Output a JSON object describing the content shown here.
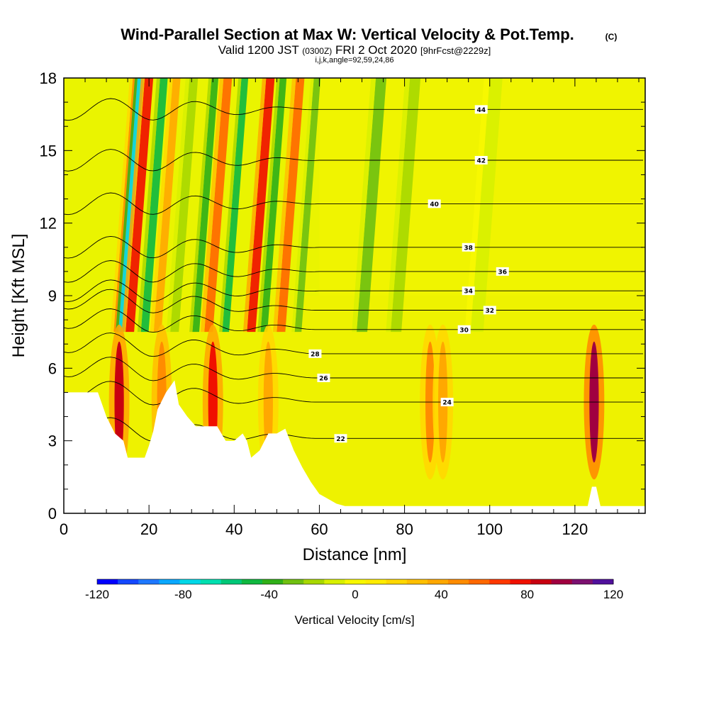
{
  "chart_data": {
    "type": "heatmap",
    "title": "Wind-Parallel Section at Max W: Vertical Velocity & Pot.Temp.",
    "title_mark": "(C)",
    "subtitle_main": "Valid 1200 JST",
    "subtitle_utc": "(0300Z)",
    "subtitle_date": "FRI 2 Oct 2020",
    "subtitle_fcst": "[9hrFcst@2229z]",
    "subtitle_ijk": "i,j,k,angle=92,59,24,86",
    "xlabel": "Distance [nm]",
    "ylabel": "Height [Kft MSL]",
    "xlim": [
      0,
      136.5
    ],
    "ylim": [
      0,
      18
    ],
    "x_ticks": [
      "0",
      "20",
      "40",
      "60",
      "80",
      "100",
      "120"
    ],
    "x_tick_values": [
      0,
      20,
      40,
      60,
      80,
      100,
      120
    ],
    "y_ticks": [
      "0",
      "3",
      "6",
      "9",
      "12",
      "15",
      "18"
    ],
    "y_tick_values": [
      0,
      3,
      6,
      9,
      12,
      15,
      18
    ],
    "colorbar": {
      "label": "Vertical Velocity [cm/s]",
      "min": -120,
      "max": 120,
      "tick_labels": [
        "-120",
        "-80",
        "-40",
        "0",
        "40",
        "80",
        "120"
      ],
      "tick_values": [
        -120,
        -80,
        -40,
        0,
        40,
        80,
        120
      ],
      "colors": [
        "#0000ff",
        "#1448ff",
        "#1e78ff",
        "#0aa8ff",
        "#00d8e8",
        "#00e0b0",
        "#00c878",
        "#10b840",
        "#30b018",
        "#70c010",
        "#a8d800",
        "#d8f000",
        "#f8f800",
        "#ffec00",
        "#ffd800",
        "#ffc000",
        "#ffa800",
        "#ff8c00",
        "#ff6800",
        "#ff3800",
        "#f01000",
        "#c80010",
        "#a00040",
        "#7c1070",
        "#50109c"
      ]
    },
    "theta_contours": [
      {
        "theta": 22,
        "height": 3.1,
        "label": "22"
      },
      {
        "theta": 24,
        "height": 4.6,
        "label": "24"
      },
      {
        "theta": 26,
        "height": 5.6,
        "label": "26"
      },
      {
        "theta": 28,
        "height": 6.6,
        "label": "28"
      },
      {
        "theta": 30,
        "height": 7.6,
        "label": "30"
      },
      {
        "theta": 32,
        "height": 8.4,
        "label": "32"
      },
      {
        "theta": 34,
        "height": 9.2,
        "label": "34"
      },
      {
        "theta": 36,
        "height": 10.0,
        "label": "36"
      },
      {
        "theta": 38,
        "height": 11.0,
        "label": "38"
      },
      {
        "theta": 40,
        "height": 12.8,
        "label": "40"
      },
      {
        "theta": 42,
        "height": 14.6,
        "label": "42"
      },
      {
        "theta": 44,
        "height": 16.7,
        "label": "44"
      }
    ],
    "velocity_bands": [
      {
        "x": 12.5,
        "w": 52,
        "width": 1.6
      },
      {
        "x": 13.5,
        "w": -80,
        "width": 1.4
      },
      {
        "x": 15.5,
        "w": 78,
        "width": 2.0
      },
      {
        "x": 19,
        "w": -48,
        "width": 1.8
      },
      {
        "x": 22,
        "w": 40,
        "width": 1.8
      },
      {
        "x": 26,
        "w": -20,
        "width": 2.0
      },
      {
        "x": 31,
        "w": -40,
        "width": 1.6
      },
      {
        "x": 34,
        "w": 55,
        "width": 2.0
      },
      {
        "x": 38,
        "w": -45,
        "width": 1.6
      },
      {
        "x": 44,
        "w": 75,
        "width": 2.0
      },
      {
        "x": 47,
        "w": -38,
        "width": 1.6
      },
      {
        "x": 51,
        "w": 60,
        "width": 2.0
      },
      {
        "x": 55,
        "w": -32,
        "width": 1.6
      },
      {
        "x": 70,
        "w": -25,
        "width": 2.5
      },
      {
        "x": 78,
        "w": -15,
        "width": 2.5
      },
      {
        "x": 97,
        "w": -10,
        "width": 3.0
      }
    ],
    "low_level_cells": [
      {
        "x": 13,
        "w": 85
      },
      {
        "x": 23,
        "w": 50
      },
      {
        "x": 35,
        "w": 80
      },
      {
        "x": 48,
        "w": 40
      },
      {
        "x": 86,
        "w": 45
      },
      {
        "x": 89,
        "w": 40
      },
      {
        "x": 124.5,
        "w": 95
      }
    ],
    "terrain": [
      [
        0,
        5.0
      ],
      [
        8,
        5.0
      ],
      [
        10,
        4.0
      ],
      [
        12,
        3.3
      ],
      [
        14,
        3.0
      ],
      [
        15,
        2.3
      ],
      [
        19,
        2.3
      ],
      [
        20,
        2.8
      ],
      [
        21,
        3.4
      ],
      [
        22,
        4.3
      ],
      [
        24,
        5.0
      ],
      [
        26,
        5.5
      ],
      [
        27,
        4.5
      ],
      [
        29,
        4.0
      ],
      [
        31,
        3.6
      ],
      [
        36,
        3.6
      ],
      [
        38,
        3.0
      ],
      [
        40,
        3.0
      ],
      [
        42,
        3.3
      ],
      [
        43,
        3.0
      ],
      [
        44,
        2.3
      ],
      [
        46,
        2.6
      ],
      [
        48,
        3.3
      ],
      [
        50,
        3.3
      ],
      [
        52,
        3.5
      ],
      [
        54,
        2.6
      ],
      [
        56,
        1.9
      ],
      [
        58,
        1.3
      ],
      [
        60,
        0.8
      ],
      [
        62,
        0.6
      ],
      [
        64,
        0.4
      ],
      [
        66,
        0.3
      ],
      [
        75,
        0.3
      ],
      [
        120,
        0.3
      ],
      [
        123,
        0.3
      ],
      [
        124,
        1.1
      ],
      [
        125,
        1.1
      ],
      [
        126,
        0.3
      ],
      [
        136.5,
        0.3
      ]
    ]
  }
}
